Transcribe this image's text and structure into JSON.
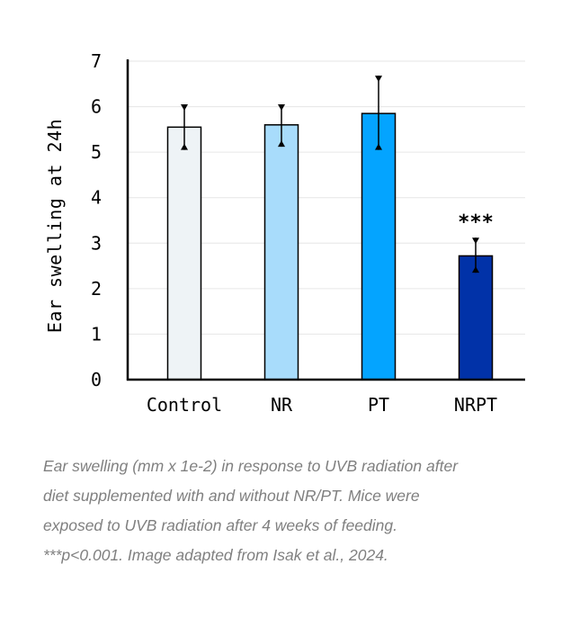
{
  "chart_data": {
    "type": "bar",
    "categories": [
      "Control",
      "NR",
      "PT",
      "NRPT"
    ],
    "values": [
      5.55,
      5.6,
      5.85,
      2.72
    ],
    "error_upper": [
      6.05,
      6.05,
      6.68,
      3.12
    ],
    "error_lower": [
      5.05,
      5.12,
      5.05,
      2.35
    ],
    "bar_colors": [
      "#eef3f6",
      "#a8dcfb",
      "#04a4ff",
      "#0132a8"
    ],
    "title": "",
    "xlabel": "",
    "ylabel": "Ear swelling at 24h",
    "ylim": [
      0,
      7
    ],
    "yticks": [
      0,
      1,
      2,
      3,
      4,
      5,
      6,
      7
    ],
    "grid": true,
    "annotations": [
      {
        "category": "NRPT",
        "text": "***"
      }
    ]
  },
  "caption": {
    "line1": "Ear swelling (mm x 1e-2) in response to UVB radiation after",
    "line2": "diet supplemented with and without NR/PT. Mice were",
    "line3": "exposed to UVB radiation after 4 weeks of feeding.",
    "line4": "***p<0.001. Image adapted from Isak et al., 2024."
  }
}
